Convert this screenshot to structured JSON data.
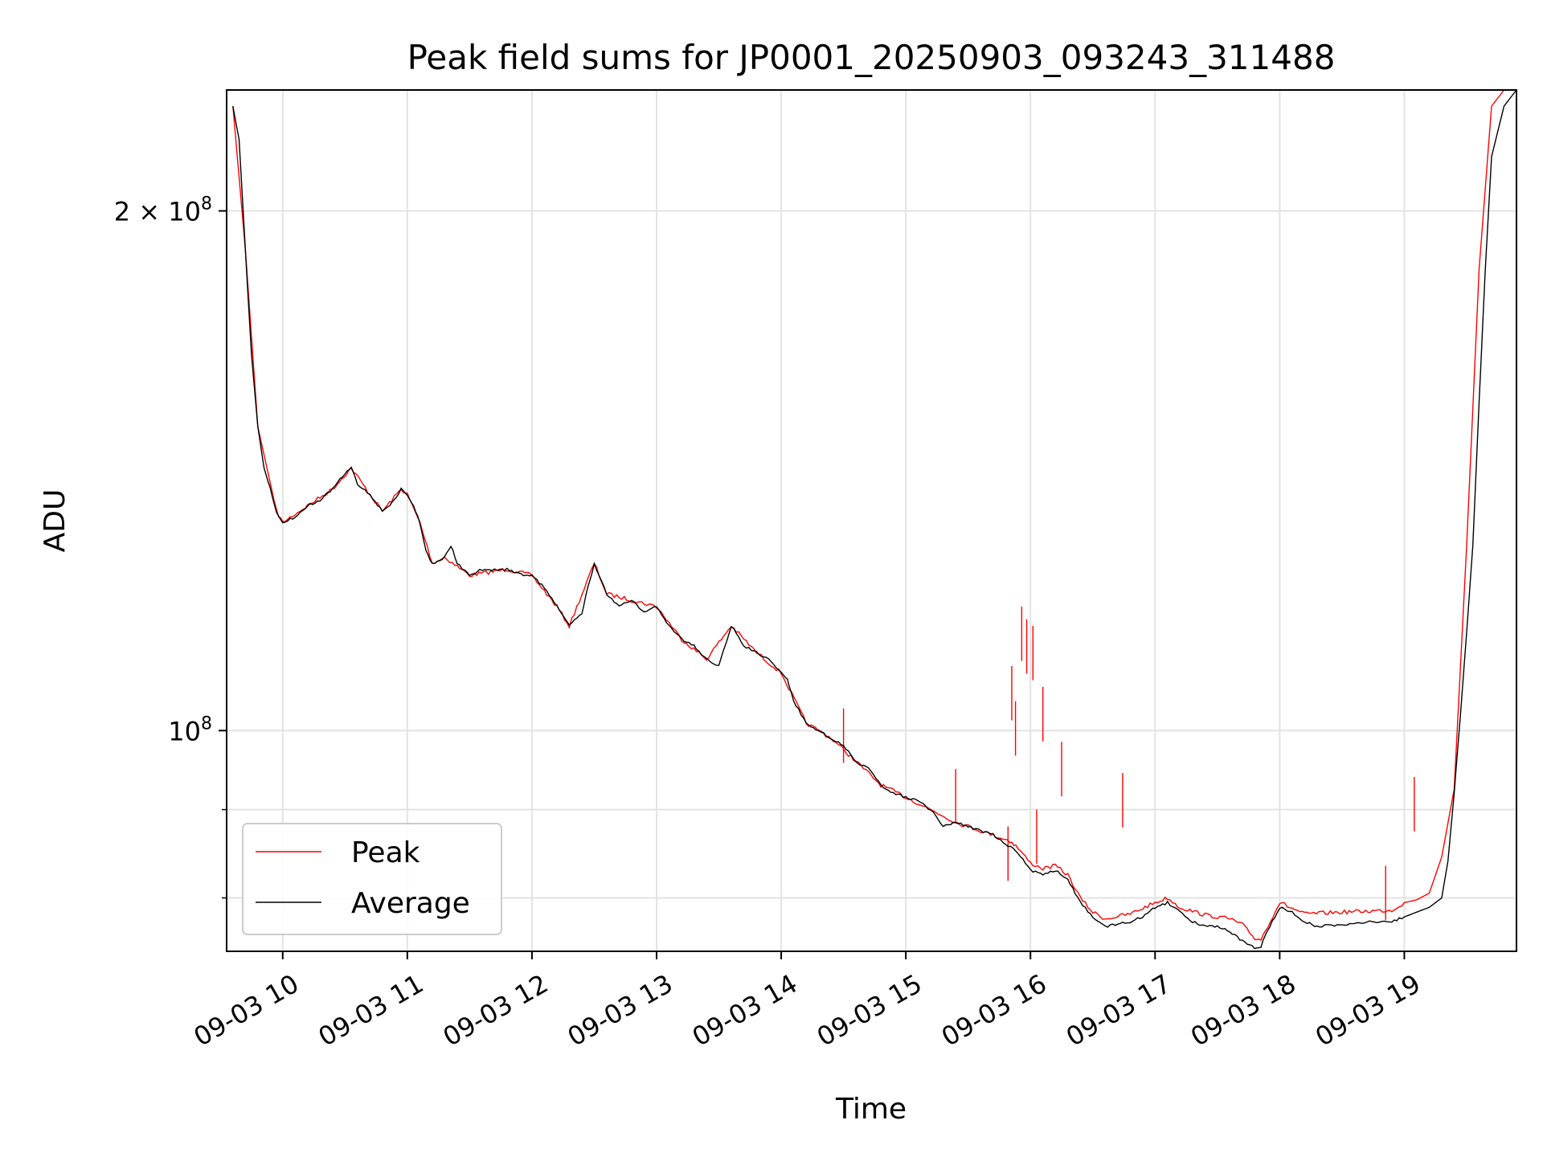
{
  "chart_data": {
    "type": "line",
    "title": "Peak field sums for JP0001_20250903_093243_311488",
    "xlabel": "Time",
    "ylabel": "ADU",
    "yscale": "log",
    "xlim": [
      9.55,
      19.9
    ],
    "ylim": [
      74500000.0,
      235000000.0
    ],
    "grid": true,
    "legend_position": "lower-left",
    "x_ticks": [
      {
        "value": 10,
        "label": "09-03 10"
      },
      {
        "value": 11,
        "label": "09-03 11"
      },
      {
        "value": 12,
        "label": "09-03 12"
      },
      {
        "value": 13,
        "label": "09-03 13"
      },
      {
        "value": 14,
        "label": "09-03 14"
      },
      {
        "value": 15,
        "label": "09-03 15"
      },
      {
        "value": 16,
        "label": "09-03 16"
      },
      {
        "value": 17,
        "label": "09-03 17"
      },
      {
        "value": 18,
        "label": "09-03 18"
      },
      {
        "value": 19,
        "label": "09-03 19"
      }
    ],
    "y_ticks_major": [
      {
        "value": 100000000,
        "base": "10",
        "exp": "8"
      },
      {
        "value": 200000000,
        "base": "2 × 10",
        "exp": "8"
      }
    ],
    "y_ticks_minor": [
      80000000,
      90000000
    ],
    "series": [
      {
        "name": "Average",
        "color": "#000000",
        "x": [
          9.6,
          9.65,
          9.7,
          9.75,
          9.8,
          9.85,
          9.9,
          9.95,
          10.0,
          10.1,
          10.2,
          10.3,
          10.4,
          10.5,
          10.55,
          10.6,
          10.7,
          10.8,
          10.9,
          10.95,
          11.0,
          11.05,
          11.1,
          11.15,
          11.2,
          11.3,
          11.35,
          11.4,
          11.5,
          11.6,
          11.8,
          11.95,
          12.0,
          12.1,
          12.2,
          12.3,
          12.4,
          12.45,
          12.5,
          12.6,
          12.7,
          12.8,
          12.9,
          13.0,
          13.1,
          13.2,
          13.3,
          13.4,
          13.5,
          13.55,
          13.6,
          13.7,
          13.8,
          13.9,
          14.0,
          14.05,
          14.1,
          14.2,
          14.3,
          14.4,
          14.5,
          14.6,
          14.7,
          14.8,
          14.9,
          15.0,
          15.1,
          15.2,
          15.3,
          15.4,
          15.5,
          15.6,
          15.7,
          15.8,
          15.9,
          16.0,
          16.1,
          16.2,
          16.3,
          16.4,
          16.5,
          16.6,
          16.7,
          16.8,
          16.9,
          17.0,
          17.1,
          17.2,
          17.3,
          17.4,
          17.5,
          17.6,
          17.7,
          17.8,
          17.85,
          17.9,
          18.0,
          18.1,
          18.2,
          18.3,
          18.5,
          18.7,
          18.9,
          19.0,
          19.1,
          19.2,
          19.3,
          19.35,
          19.4,
          19.45,
          19.5,
          19.55,
          19.6,
          19.65,
          19.7,
          19.8,
          19.9
        ],
        "values": [
          230000000.0,
          220000000.0,
          190000000.0,
          165000000.0,
          150000000.0,
          142000000.0,
          138000000.0,
          134000000.0,
          132000000.0,
          133000000.0,
          135000000.0,
          136000000.0,
          138000000.0,
          141000000.0,
          142000000.0,
          139000000.0,
          137000000.0,
          134000000.0,
          136000000.0,
          138000000.0,
          137000000.0,
          135000000.0,
          132000000.0,
          127000000.0,
          125000000.0,
          126000000.0,
          128000000.0,
          125000000.0,
          123000000.0,
          124000000.0,
          124000000.0,
          123000000.0,
          123000000.0,
          121000000.0,
          118000000.0,
          115000000.0,
          117000000.0,
          121000000.0,
          125000000.0,
          120000000.0,
          118000000.0,
          119000000.0,
          117000000.0,
          118000000.0,
          115000000.0,
          113000000.0,
          112000000.0,
          110000000.0,
          109000000.0,
          112000000.0,
          115000000.0,
          112000000.0,
          111000000.0,
          110000000.0,
          108000000.0,
          107000000.0,
          104000000.0,
          101000000.0,
          100000000.0,
          99000000.0,
          98000000.0,
          96000000.0,
          95000000.0,
          93000000.0,
          92000000.0,
          91500000.0,
          91000000.0,
          90000000.0,
          88000000.0,
          88500000.0,
          88000000.0,
          87500000.0,
          87000000.0,
          86000000.0,
          85000000.0,
          83000000.0,
          82500000.0,
          83000000.0,
          82000000.0,
          79500000.0,
          78000000.0,
          77000000.0,
          77300000.0,
          77500000.0,
          78000000.0,
          79000000.0,
          79500000.0,
          78500000.0,
          77500000.0,
          77000000.0,
          77000000.0,
          76500000.0,
          75500000.0,
          74800000.0,
          75000000.0,
          76500000.0,
          79000000.0,
          78500000.0,
          77500000.0,
          77000000.0,
          77200000.0,
          77500000.0,
          77500000.0,
          78000000.0,
          78500000.0,
          79000000.0,
          80000000.0,
          84000000.0,
          92000000.0,
          102000000.0,
          114000000.0,
          128000000.0,
          155000000.0,
          185000000.0,
          215000000.0,
          230000000.0,
          235000000.0
        ]
      },
      {
        "name": "Peak",
        "color": "#ff0000",
        "x": [
          9.6,
          9.7,
          9.8,
          9.95,
          10.0,
          10.2,
          10.4,
          10.55,
          10.7,
          10.8,
          10.95,
          11.0,
          11.1,
          11.2,
          11.3,
          11.5,
          11.8,
          12.0,
          12.2,
          12.3,
          12.5,
          12.6,
          12.8,
          13.0,
          13.2,
          13.4,
          13.6,
          13.8,
          14.0,
          14.2,
          14.4,
          14.6,
          14.8,
          15.0,
          15.2,
          15.4,
          15.6,
          15.7,
          15.8,
          15.85,
          15.9,
          16.0,
          16.1,
          16.2,
          16.3,
          16.4,
          16.5,
          16.6,
          16.8,
          17.0,
          17.1,
          17.2,
          17.4,
          17.6,
          17.7,
          17.8,
          17.85,
          18.0,
          18.2,
          18.5,
          18.9,
          19.0,
          19.1,
          19.2,
          19.3,
          19.4,
          19.5,
          19.6,
          19.7,
          19.8,
          19.9
        ],
        "values": [
          230000000.0,
          190000000.0,
          150000000.0,
          134000000.0,
          132000000.0,
          135000000.0,
          138000000.0,
          142000000.0,
          137000000.0,
          134000000.0,
          138000000.0,
          137000000.0,
          132000000.0,
          125000000.0,
          126000000.0,
          123000000.0,
          124000000.0,
          123000000.0,
          118000000.0,
          115000000.0,
          125000000.0,
          120000000.0,
          119000000.0,
          118000000.0,
          113000000.0,
          110000000.0,
          115000000.0,
          111000000.0,
          108000000.0,
          101000000.0,
          99000000.0,
          96000000.0,
          93000000.0,
          91500000.0,
          90000000.0,
          88500000.0,
          87500000.0,
          87000000.0,
          86500000.0,
          86200000.0,
          85500000.0,
          83800000.0,
          83200000.0,
          83500000.0,
          82500000.0,
          80000000.0,
          78500000.0,
          77800000.0,
          78300000.0,
          79500000.0,
          80000000.0,
          79000000.0,
          78200000.0,
          77800000.0,
          77200000.0,
          75800000.0,
          75700000.0,
          79500000.0,
          78300000.0,
          78500000.0,
          78700000.0,
          79500000.0,
          79800000.0,
          80500000.0,
          84500000.0,
          92500000.0,
          128000000.0,
          185000000.0,
          230000000.0,
          235000000.0,
          235000000.0
        ]
      }
    ],
    "peak_spikes": [
      {
        "x": 15.82,
        "value": 88000000.0
      },
      {
        "x": 15.85,
        "value": 109000000.0
      },
      {
        "x": 15.88,
        "value": 104000000.0
      },
      {
        "x": 15.93,
        "value": 118000000.0
      },
      {
        "x": 15.97,
        "value": 116000000.0
      },
      {
        "x": 16.02,
        "value": 115000000.0
      },
      {
        "x": 16.05,
        "value": 90000000.0
      },
      {
        "x": 16.1,
        "value": 106000000.0
      },
      {
        "x": 16.25,
        "value": 98500000.0
      },
      {
        "x": 16.74,
        "value": 94500000.0
      },
      {
        "x": 14.5,
        "value": 103000000.0
      },
      {
        "x": 15.4,
        "value": 95000000.0
      },
      {
        "x": 18.85,
        "value": 83500000.0
      },
      {
        "x": 19.08,
        "value": 94000000.0
      }
    ]
  }
}
